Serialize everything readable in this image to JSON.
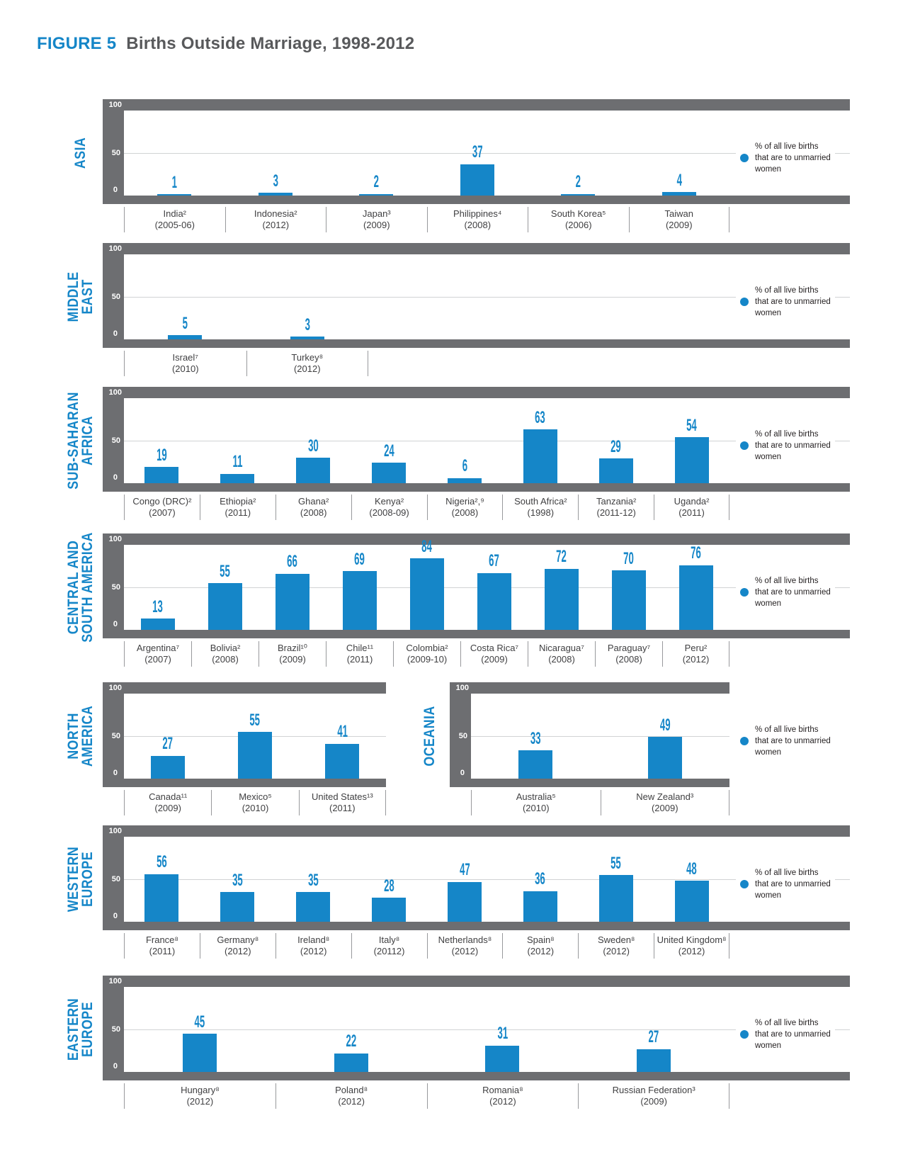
{
  "title": {
    "figure_label": "FIGURE 5",
    "text": "Births Outside Marriage, 1998-2012"
  },
  "legend": {
    "label": "% of all live births that are to unmarried women",
    "lines": [
      "% of all live births",
      "that are to unmarried",
      "women"
    ]
  },
  "y_axis": {
    "ticks": [
      "100",
      "50",
      "0"
    ],
    "max": 100
  },
  "colors": {
    "bar_blue": "#1586c8",
    "frame_gray": "#6d6e71",
    "gridline": "#d1d3d4",
    "title_gray": "#58595b",
    "label_dark": "#404042"
  },
  "chart_data": [
    {
      "type": "bar",
      "region": "ASIA",
      "region_lines": [
        "ASIA"
      ],
      "categories": [
        "India²",
        "Indonesia²",
        "Japan³",
        "Philippines⁴",
        "South Korea⁵",
        "Taiwan"
      ],
      "years": [
        "(2005-06)",
        "(2012)",
        "(2009)",
        "(2008)",
        "(2006)",
        "(2009)"
      ],
      "values": [
        1,
        3,
        2,
        37,
        2,
        4
      ],
      "ylim": [
        0,
        100
      ],
      "show_legend": true
    },
    {
      "type": "bar",
      "region": "MIDDLE EAST",
      "region_lines": [
        "MIDDLE",
        "EAST"
      ],
      "categories": [
        "Israel⁷",
        "Turkey⁸"
      ],
      "years": [
        "(2010)",
        "(2012)"
      ],
      "values": [
        5,
        3
      ],
      "ylim": [
        0,
        100
      ],
      "show_legend": true
    },
    {
      "type": "bar",
      "region": "SUB-SAHARAN AFRICA",
      "region_lines": [
        "SUB-SAHARAN",
        "AFRICA"
      ],
      "categories": [
        "Congo (DRC)²",
        "Ethiopia²",
        "Ghana²",
        "Kenya²",
        "Nigeria²,⁹",
        "South Africa²",
        "Tanzania²",
        "Uganda²"
      ],
      "years": [
        "(2007)",
        "(2011)",
        "(2008)",
        "(2008-09)",
        "(2008)",
        "(1998)",
        "(2011-12)",
        "(2011)"
      ],
      "values": [
        19,
        11,
        30,
        24,
        6,
        63,
        29,
        54
      ],
      "ylim": [
        0,
        100
      ],
      "show_legend": true
    },
    {
      "type": "bar",
      "region": "CENTRAL AND SOUTH AMERICA",
      "region_lines": [
        "CENTRAL AND",
        "SOUTH AMERICA"
      ],
      "categories": [
        "Argentina⁷",
        "Bolivia²",
        "Brazil¹⁰",
        "Chile¹¹",
        "Colombia²",
        "Costa Rica⁷",
        "Nicaragua⁷",
        "Paraguay⁷",
        "Peru²"
      ],
      "years": [
        "(2007)",
        "(2008)",
        "(2009)",
        "(2011)",
        "(2009-10)",
        "(2009)",
        "(2008)",
        "(2008)",
        "(2012)"
      ],
      "values": [
        13,
        55,
        66,
        69,
        84,
        67,
        72,
        70,
        76
      ],
      "ylim": [
        0,
        100
      ],
      "show_legend": true
    },
    {
      "type": "bar",
      "region": "NORTH AMERICA",
      "region_lines": [
        "NORTH",
        "AMERICA"
      ],
      "categories": [
        "Canada¹¹",
        "Mexico⁵",
        "United States¹³"
      ],
      "years": [
        "(2009)",
        "(2010)",
        "(2011)"
      ],
      "values": [
        27,
        55,
        41
      ],
      "ylim": [
        0,
        100
      ],
      "show_legend": false
    },
    {
      "type": "bar",
      "region": "OCEANIA",
      "region_lines": [
        "OCEANIA"
      ],
      "categories": [
        "Australia⁵",
        "New Zealand³"
      ],
      "years": [
        "(2010)",
        "(2009)"
      ],
      "values": [
        33,
        49
      ],
      "ylim": [
        0,
        100
      ],
      "show_legend": true
    },
    {
      "type": "bar",
      "region": "WESTERN EUROPE",
      "region_lines": [
        "WESTERN",
        "EUROPE"
      ],
      "categories": [
        "France⁸",
        "Germany⁸",
        "Ireland⁸",
        "Italy⁸",
        "Netherlands⁸",
        "Spain⁸",
        "Sweden⁸",
        "United Kingdom⁸"
      ],
      "years": [
        "(2011)",
        "(2012)",
        "(2012)",
        "(20112)",
        "(2012)",
        "(2012)",
        "(2012)",
        "(2012)"
      ],
      "values": [
        56,
        35,
        35,
        28,
        47,
        36,
        55,
        48
      ],
      "ylim": [
        0,
        100
      ],
      "show_legend": true
    },
    {
      "type": "bar",
      "region": "EASTERN EUROPE",
      "region_lines": [
        "EASTERN",
        "EUROPE"
      ],
      "categories": [
        "Hungary⁸",
        "Poland⁸",
        "Romania⁸",
        "Russian Federation³"
      ],
      "years": [
        "(2012)",
        "(2012)",
        "(2012)",
        "(2009)"
      ],
      "values": [
        45,
        22,
        31,
        27
      ],
      "ylim": [
        0,
        100
      ],
      "show_legend": true
    }
  ]
}
